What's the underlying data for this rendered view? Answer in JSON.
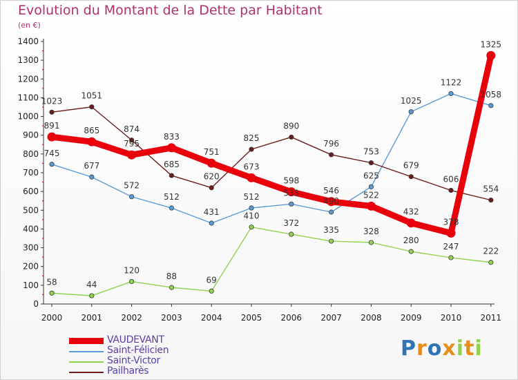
{
  "chart_data": {
    "type": "line",
    "title": "Evolution du Montant de la Dette par Habitant",
    "subtitle": "(en €)",
    "x": [
      "2000",
      "2001",
      "2002",
      "2003",
      "2004",
      "2005",
      "2006",
      "2007",
      "2008",
      "2009",
      "2010",
      "2011"
    ],
    "yticks": [
      0,
      100,
      200,
      300,
      400,
      500,
      600,
      700,
      800,
      900,
      1000,
      1100,
      1200,
      1300,
      1400
    ],
    "ylim": [
      0,
      1400
    ],
    "grid": false,
    "legend_position": "bottom-left",
    "series": [
      {
        "name": "VAUDEVANT",
        "color": "#e8000b",
        "emphasis": true,
        "values": [
          891,
          865,
          795,
          833,
          751,
          673,
          598,
          546,
          522,
          432,
          378,
          1325
        ]
      },
      {
        "name": "Saint-Félicien",
        "color": "#5b9bd5",
        "values": [
          745,
          677,
          572,
          512,
          431,
          512,
          533,
          490,
          625,
          1025,
          1122,
          1058
        ]
      },
      {
        "name": "Saint-Victor",
        "color": "#92d050",
        "values": [
          58,
          44,
          120,
          88,
          69,
          410,
          372,
          335,
          328,
          280,
          247,
          222
        ]
      },
      {
        "name": "Pailharès",
        "color": "#6b1c1c",
        "values": [
          1023,
          1051,
          874,
          685,
          620,
          825,
          890,
          796,
          753,
          679,
          606,
          554
        ]
      }
    ]
  },
  "logo": {
    "letters": [
      "P",
      "r",
      "o",
      "x",
      "i",
      "t",
      "i"
    ],
    "colors": [
      "#2e75b6",
      "#e58e1a",
      "#2e75b6",
      "#e58e1a",
      "#92d050",
      "#e58e1a",
      "#92d050"
    ]
  }
}
